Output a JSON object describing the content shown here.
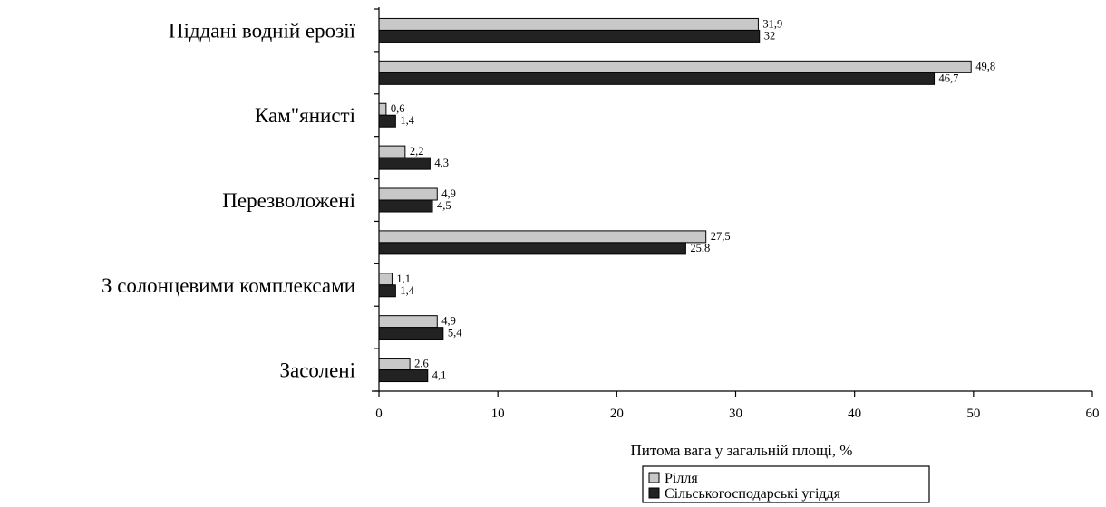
{
  "chart_data": {
    "type": "bar",
    "orientation": "horizontal",
    "categories": [
      "Піддані водній ерозії",
      "",
      "Кам\"янисті",
      "",
      "Перезволожені",
      "",
      "З солонцевими комплексами",
      "",
      "Засолені"
    ],
    "series": [
      {
        "name": "Рілля",
        "values": [
          31.9,
          49.8,
          0.6,
          2.2,
          4.9,
          27.5,
          1.1,
          4.9,
          2.6
        ],
        "value_labels": [
          "31,9",
          "49,8",
          "0,6",
          "2,2",
          "4,9",
          "27,5",
          "1,1",
          "4,9",
          "2,6"
        ],
        "color": "#c8c8c8"
      },
      {
        "name": "Сільськогосподарські угіддя",
        "values": [
          32,
          46.7,
          1.4,
          4.3,
          4.5,
          25.8,
          1.4,
          5.4,
          4.1
        ],
        "value_labels": [
          "32",
          "46,7",
          "1,4",
          "4,3",
          "4,5",
          "25,8",
          "1,4",
          "5,4",
          "4,1"
        ],
        "color": "#222222"
      }
    ],
    "xlabel": "Питома вага у загальній площі, %",
    "xlim": [
      0,
      60
    ],
    "xticks": [
      0,
      10,
      20,
      30,
      40,
      50,
      60
    ],
    "grid": false,
    "legend_position": "bottom-center"
  }
}
